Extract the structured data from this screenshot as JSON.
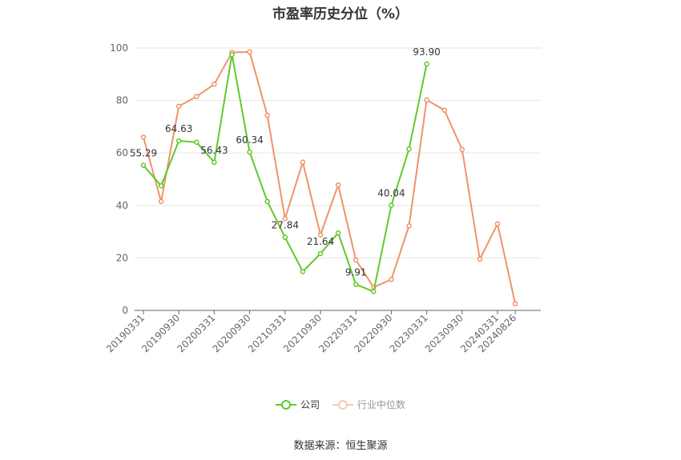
{
  "chart_data": {
    "type": "line",
    "title": "市盈率历史分位（%）",
    "categories": [
      "20190331",
      "20190630",
      "20190930",
      "20191231",
      "20200331",
      "20200630",
      "20200930",
      "20201231",
      "20210331",
      "20210630",
      "20210930",
      "20211231",
      "20220331",
      "20220630",
      "20220930",
      "20221231",
      "20230331",
      "20230630",
      "20230930",
      "20231231",
      "20240331",
      "20240826"
    ],
    "xtick_labels": [
      "20190331",
      "20190930",
      "20200331",
      "20200930",
      "20210331",
      "20210930",
      "20220331",
      "20220930",
      "20230331",
      "20230930",
      "20240331",
      "20240826"
    ],
    "yticks": [
      0,
      20,
      40,
      60,
      80,
      100
    ],
    "ylim": [
      0,
      100
    ],
    "grid": true,
    "legend_position": "bottom",
    "series": [
      {
        "name": "公司",
        "color": "#5fc92b",
        "values": [
          55.29,
          47.5,
          64.63,
          64.1,
          56.43,
          97.5,
          60.34,
          41.5,
          27.84,
          14.8,
          21.64,
          29.5,
          9.91,
          7.2,
          40.04,
          61.5,
          93.9,
          null,
          null,
          null,
          null,
          null
        ],
        "labels": {
          "0": "55.29",
          "2": "64.63",
          "4": "56.43",
          "6": "60.34",
          "8": "27.84",
          "10": "21.64",
          "12": "9.91",
          "14": "40.04",
          "16": "93.90"
        }
      },
      {
        "name": "行业中位数",
        "color": "#f0936a",
        "values": [
          66.0,
          41.5,
          77.8,
          81.5,
          86.2,
          98.3,
          98.5,
          74.3,
          35.0,
          56.5,
          28.8,
          47.8,
          19.2,
          8.8,
          11.8,
          32.2,
          80.2,
          76.3,
          61.3,
          19.5,
          33.0,
          2.5
        ]
      }
    ]
  },
  "source_note": "数据来源：恒生聚源"
}
